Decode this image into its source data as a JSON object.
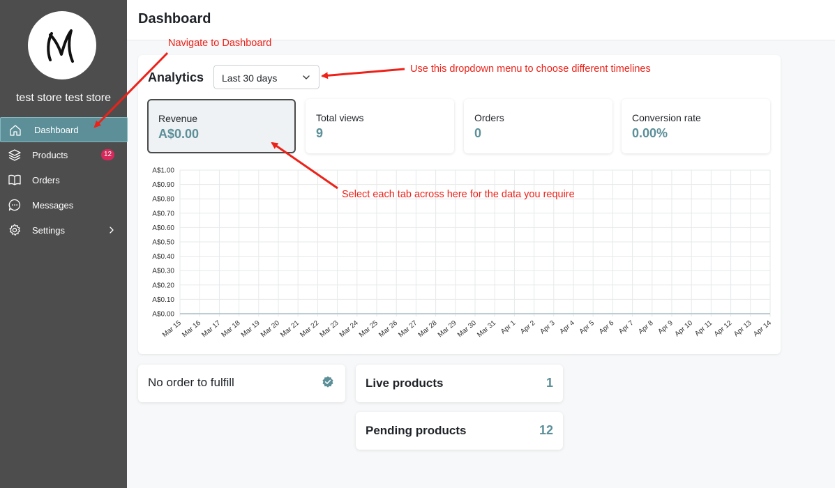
{
  "sidebar": {
    "store_name": "test store test store",
    "items": [
      {
        "label": "Dashboard",
        "icon": "home-icon"
      },
      {
        "label": "Products",
        "icon": "layers-icon",
        "badge": "12"
      },
      {
        "label": "Orders",
        "icon": "book-icon"
      },
      {
        "label": "Messages",
        "icon": "chat-icon"
      },
      {
        "label": "Settings",
        "icon": "gear-icon"
      }
    ]
  },
  "header": {
    "title": "Dashboard"
  },
  "analytics": {
    "title": "Analytics",
    "timeline": "Last 30 days",
    "tabs": [
      {
        "label": "Revenue",
        "value": "A$0.00"
      },
      {
        "label": "Total views",
        "value": "9"
      },
      {
        "label": "Orders",
        "value": "0"
      },
      {
        "label": "Conversion rate",
        "value": "0.00%"
      }
    ]
  },
  "chart_data": {
    "type": "line",
    "x": [
      "Mar 15",
      "Mar 16",
      "Mar 17",
      "Mar 18",
      "Mar 19",
      "Mar 20",
      "Mar 21",
      "Mar 22",
      "Mar 23",
      "Mar 24",
      "Mar 25",
      "Mar 26",
      "Mar 27",
      "Mar 28",
      "Mar 29",
      "Mar 30",
      "Mar 31",
      "Apr 1",
      "Apr 2",
      "Apr 3",
      "Apr 4",
      "Apr 5",
      "Apr 6",
      "Apr 7",
      "Apr 8",
      "Apr 9",
      "Apr 10",
      "Apr 11",
      "Apr 12",
      "Apr 13",
      "Apr 14"
    ],
    "series": [
      {
        "values": [
          0,
          0,
          0,
          0,
          0,
          0,
          0,
          0,
          0,
          0,
          0,
          0,
          0,
          0,
          0,
          0,
          0,
          0,
          0,
          0,
          0,
          0,
          0,
          0,
          0,
          0,
          0,
          0,
          0,
          0,
          0
        ]
      }
    ],
    "y_ticks": [
      "A$0.00",
      "A$0.10",
      "A$0.20",
      "A$0.30",
      "A$0.40",
      "A$0.50",
      "A$0.60",
      "A$0.70",
      "A$0.80",
      "A$0.90",
      "A$1.00"
    ],
    "ylim": [
      0,
      1
    ],
    "grid": true
  },
  "summary": {
    "fulfill": "No order to fulfill",
    "live_label": "Live products",
    "live_count": "1",
    "pending_label": "Pending products",
    "pending_count": "12"
  },
  "annotations": {
    "nav": "Navigate to Dashboard",
    "dropdown": "Use this dropdown menu to choose different timelines",
    "tabs": "Select each tab across here for the data you require"
  },
  "colors": {
    "accent": "#5c8f98",
    "sidebar": "#4d4d4d",
    "badge": "#d6285b",
    "annotation": "#ee2118"
  }
}
